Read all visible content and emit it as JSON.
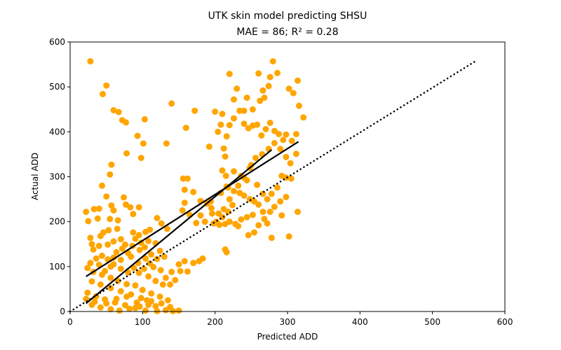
{
  "chart_data": {
    "type": "scatter",
    "title_line1": "UTK skin model predicting SHSU",
    "title_line2": "MAE = 86; R² = 0.28",
    "xlabel": "Predicted ADD",
    "ylabel": "Actual ADD",
    "xlim": [
      0,
      600
    ],
    "ylim": [
      0,
      600
    ],
    "xticks": [
      "0",
      "100",
      "200",
      "300",
      "400",
      "500",
      "600"
    ],
    "yticks": [
      "0",
      "100",
      "200",
      "300",
      "400",
      "500",
      "600"
    ],
    "grid": false,
    "point_color": "#FFA500",
    "line_color": "#000000",
    "points": [
      [
        28,
        557
      ],
      [
        45,
        484
      ],
      [
        50,
        503
      ],
      [
        60,
        448
      ],
      [
        67,
        444
      ],
      [
        72,
        426
      ],
      [
        77,
        421
      ],
      [
        93,
        391
      ],
      [
        103,
        428
      ],
      [
        101,
        374
      ],
      [
        98,
        342
      ],
      [
        140,
        463
      ],
      [
        160,
        409
      ],
      [
        172,
        447
      ],
      [
        133,
        374
      ],
      [
        78,
        352
      ],
      [
        57,
        327
      ],
      [
        55,
        305
      ],
      [
        44,
        280
      ],
      [
        50,
        256
      ],
      [
        57,
        236
      ],
      [
        74,
        254
      ],
      [
        77,
        238
      ],
      [
        83,
        232
      ],
      [
        95,
        232
      ],
      [
        60,
        225
      ],
      [
        40,
        229
      ],
      [
        33,
        228
      ],
      [
        22,
        222
      ],
      [
        25,
        201
      ],
      [
        38,
        207
      ],
      [
        55,
        206
      ],
      [
        66,
        203
      ],
      [
        87,
        217
      ],
      [
        120,
        208
      ],
      [
        126,
        196
      ],
      [
        134,
        184
      ],
      [
        110,
        182
      ],
      [
        104,
        177
      ],
      [
        95,
        170
      ],
      [
        87,
        176
      ],
      [
        65,
        184
      ],
      [
        53,
        181
      ],
      [
        46,
        176
      ],
      [
        42,
        168
      ],
      [
        28,
        164
      ],
      [
        30,
        150
      ],
      [
        32,
        138
      ],
      [
        40,
        146
      ],
      [
        52,
        149
      ],
      [
        60,
        156
      ],
      [
        70,
        161
      ],
      [
        76,
        149
      ],
      [
        86,
        146
      ],
      [
        96,
        137
      ],
      [
        103,
        143
      ],
      [
        112,
        127
      ],
      [
        124,
        135
      ],
      [
        130,
        122
      ],
      [
        120,
        117
      ],
      [
        110,
        107
      ],
      [
        102,
        95
      ],
      [
        95,
        86
      ],
      [
        88,
        97
      ],
      [
        80,
        87
      ],
      [
        70,
        95
      ],
      [
        60,
        105
      ],
      [
        52,
        116
      ],
      [
        44,
        124
      ],
      [
        36,
        118
      ],
      [
        28,
        108
      ],
      [
        24,
        97
      ],
      [
        32,
        88
      ],
      [
        44,
        82
      ],
      [
        56,
        75
      ],
      [
        66,
        68
      ],
      [
        78,
        61
      ],
      [
        90,
        58
      ],
      [
        100,
        48
      ],
      [
        112,
        40
      ],
      [
        124,
        33
      ],
      [
        135,
        25
      ],
      [
        30,
        67
      ],
      [
        42,
        60
      ],
      [
        56,
        52
      ],
      [
        70,
        45
      ],
      [
        84,
        38
      ],
      [
        98,
        30
      ],
      [
        112,
        23
      ],
      [
        126,
        18
      ],
      [
        138,
        10
      ],
      [
        24,
        42
      ],
      [
        36,
        34
      ],
      [
        48,
        27
      ],
      [
        62,
        20
      ],
      [
        76,
        14
      ],
      [
        90,
        8
      ],
      [
        104,
        2
      ],
      [
        120,
        1
      ],
      [
        132,
        3
      ],
      [
        142,
        1
      ],
      [
        150,
        2
      ],
      [
        30,
        15
      ],
      [
        42,
        9
      ],
      [
        56,
        5
      ],
      [
        68,
        2
      ],
      [
        82,
        6
      ],
      [
        96,
        11
      ],
      [
        108,
        15
      ],
      [
        22,
        28
      ],
      [
        34,
        22
      ],
      [
        50,
        18
      ],
      [
        64,
        28
      ],
      [
        78,
        33
      ],
      [
        92,
        20
      ],
      [
        106,
        25
      ],
      [
        118,
        12
      ],
      [
        60,
        120
      ],
      [
        70,
        115
      ],
      [
        84,
        122
      ],
      [
        94,
        108
      ],
      [
        104,
        118
      ],
      [
        115,
        99
      ],
      [
        125,
        92
      ],
      [
        132,
        75
      ],
      [
        140,
        88
      ],
      [
        150,
        105
      ],
      [
        158,
        112
      ],
      [
        170,
        108
      ],
      [
        183,
        118
      ],
      [
        162,
        89
      ],
      [
        152,
        90
      ],
      [
        145,
        70
      ],
      [
        138,
        60
      ],
      [
        128,
        60
      ],
      [
        118,
        68
      ],
      [
        108,
        78
      ],
      [
        80,
        130
      ],
      [
        90,
        162
      ],
      [
        98,
        153
      ],
      [
        108,
        157
      ],
      [
        118,
        152
      ],
      [
        56,
        100
      ],
      [
        48,
        90
      ],
      [
        40,
        104
      ],
      [
        72,
        140
      ],
      [
        64,
        132
      ],
      [
        156,
        296
      ],
      [
        162,
        296
      ],
      [
        170,
        266
      ],
      [
        158,
        271
      ],
      [
        155,
        225
      ],
      [
        165,
        215
      ],
      [
        180,
        246
      ],
      [
        189,
        240
      ],
      [
        195,
        230
      ],
      [
        205,
        218
      ],
      [
        212,
        228
      ],
      [
        220,
        250
      ],
      [
        226,
        268
      ],
      [
        232,
        280
      ],
      [
        240,
        298
      ],
      [
        248,
        320
      ],
      [
        256,
        342
      ],
      [
        265,
        350
      ],
      [
        274,
        362
      ],
      [
        282,
        375
      ],
      [
        290,
        362
      ],
      [
        298,
        344
      ],
      [
        304,
        330
      ],
      [
        312,
        351
      ],
      [
        216,
        278
      ],
      [
        208,
        264
      ],
      [
        218,
        276
      ],
      [
        226,
        312
      ],
      [
        236,
        302
      ],
      [
        244,
        292
      ],
      [
        250,
        326
      ],
      [
        258,
        282
      ],
      [
        266,
        262
      ],
      [
        272,
        250
      ],
      [
        278,
        262
      ],
      [
        286,
        276
      ],
      [
        292,
        302
      ],
      [
        298,
        298
      ],
      [
        305,
        296
      ],
      [
        210,
        314
      ],
      [
        214,
        345
      ],
      [
        212,
        363
      ],
      [
        216,
        390
      ],
      [
        204,
        400
      ],
      [
        220,
        415
      ],
      [
        226,
        430
      ],
      [
        234,
        447
      ],
      [
        240,
        418
      ],
      [
        246,
        408
      ],
      [
        252,
        414
      ],
      [
        258,
        416
      ],
      [
        264,
        392
      ],
      [
        270,
        406
      ],
      [
        276,
        420
      ],
      [
        282,
        402
      ],
      [
        288,
        395
      ],
      [
        294,
        382
      ],
      [
        252,
        450
      ],
      [
        262,
        469
      ],
      [
        266,
        492
      ],
      [
        268,
        476
      ],
      [
        274,
        502
      ],
      [
        276,
        522
      ],
      [
        280,
        557
      ],
      [
        260,
        530
      ],
      [
        244,
        476
      ],
      [
        230,
        496
      ],
      [
        220,
        529
      ],
      [
        240,
        447
      ],
      [
        226,
        472
      ],
      [
        286,
        531
      ],
      [
        302,
        496
      ],
      [
        308,
        486
      ],
      [
        314,
        514
      ],
      [
        316,
        458
      ],
      [
        322,
        432
      ],
      [
        312,
        395
      ],
      [
        306,
        380
      ],
      [
        298,
        394
      ],
      [
        192,
        367
      ],
      [
        200,
        445
      ],
      [
        210,
        440
      ],
      [
        208,
        416
      ],
      [
        215,
        302
      ],
      [
        220,
        200
      ],
      [
        228,
        195
      ],
      [
        236,
        205
      ],
      [
        244,
        210
      ],
      [
        252,
        215
      ],
      [
        232,
        190
      ],
      [
        246,
        170
      ],
      [
        254,
        176
      ],
      [
        260,
        192
      ],
      [
        268,
        206
      ],
      [
        276,
        222
      ],
      [
        282,
        233
      ],
      [
        290,
        245
      ],
      [
        298,
        255
      ],
      [
        272,
        196
      ],
      [
        266,
        222
      ],
      [
        260,
        238
      ],
      [
        254,
        245
      ],
      [
        248,
        250
      ],
      [
        240,
        258
      ],
      [
        234,
        264
      ],
      [
        214,
        195
      ],
      [
        206,
        193
      ],
      [
        198,
        196
      ],
      [
        210,
        210
      ],
      [
        218,
        222
      ],
      [
        224,
        237
      ],
      [
        302,
        167
      ],
      [
        278,
        164
      ],
      [
        292,
        214
      ],
      [
        314,
        222
      ],
      [
        186,
        200
      ],
      [
        180,
        214
      ],
      [
        174,
        197
      ],
      [
        158,
        242
      ],
      [
        214,
        138
      ],
      [
        216,
        132
      ],
      [
        178,
        112
      ],
      [
        196,
        218
      ],
      [
        202,
        200
      ],
      [
        194,
        245
      ]
    ],
    "fit_line_1": [
      [
        22,
        78
      ],
      [
        315,
        378
      ]
    ],
    "fit_line_2": [
      [
        22,
        18
      ],
      [
        278,
        360
      ]
    ],
    "identity_line": [
      [
        0,
        0
      ],
      [
        560,
        558
      ]
    ]
  }
}
